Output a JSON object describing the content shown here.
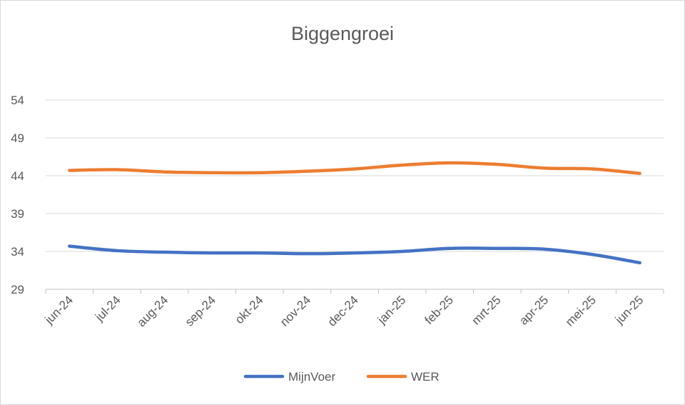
{
  "chart_data": {
    "type": "line",
    "title": "Biggengroei",
    "categories": [
      "jun-24",
      "jul-24",
      "aug-24",
      "sep-24",
      "okt-24",
      "nov-24",
      "dec-24",
      "jan-25",
      "feb-25",
      "mrt-25",
      "apr-25",
      "mei-25",
      "jun-25"
    ],
    "series": [
      {
        "name": "MijnVoer",
        "color": "#4472C4",
        "values": [
          34.7,
          34.1,
          33.9,
          33.8,
          33.8,
          33.7,
          33.8,
          34.0,
          34.4,
          34.4,
          34.3,
          33.6,
          32.5
        ]
      },
      {
        "name": "WER",
        "color": "#ED7D31",
        "values": [
          44.7,
          44.8,
          44.5,
          44.4,
          44.4,
          44.6,
          44.9,
          45.4,
          45.7,
          45.5,
          45.0,
          44.9,
          44.3
        ]
      }
    ],
    "yticks": [
      29,
      34,
      39,
      44,
      49,
      54
    ],
    "ylim": [
      29,
      54
    ],
    "grid": true,
    "legend_position": "bottom"
  }
}
